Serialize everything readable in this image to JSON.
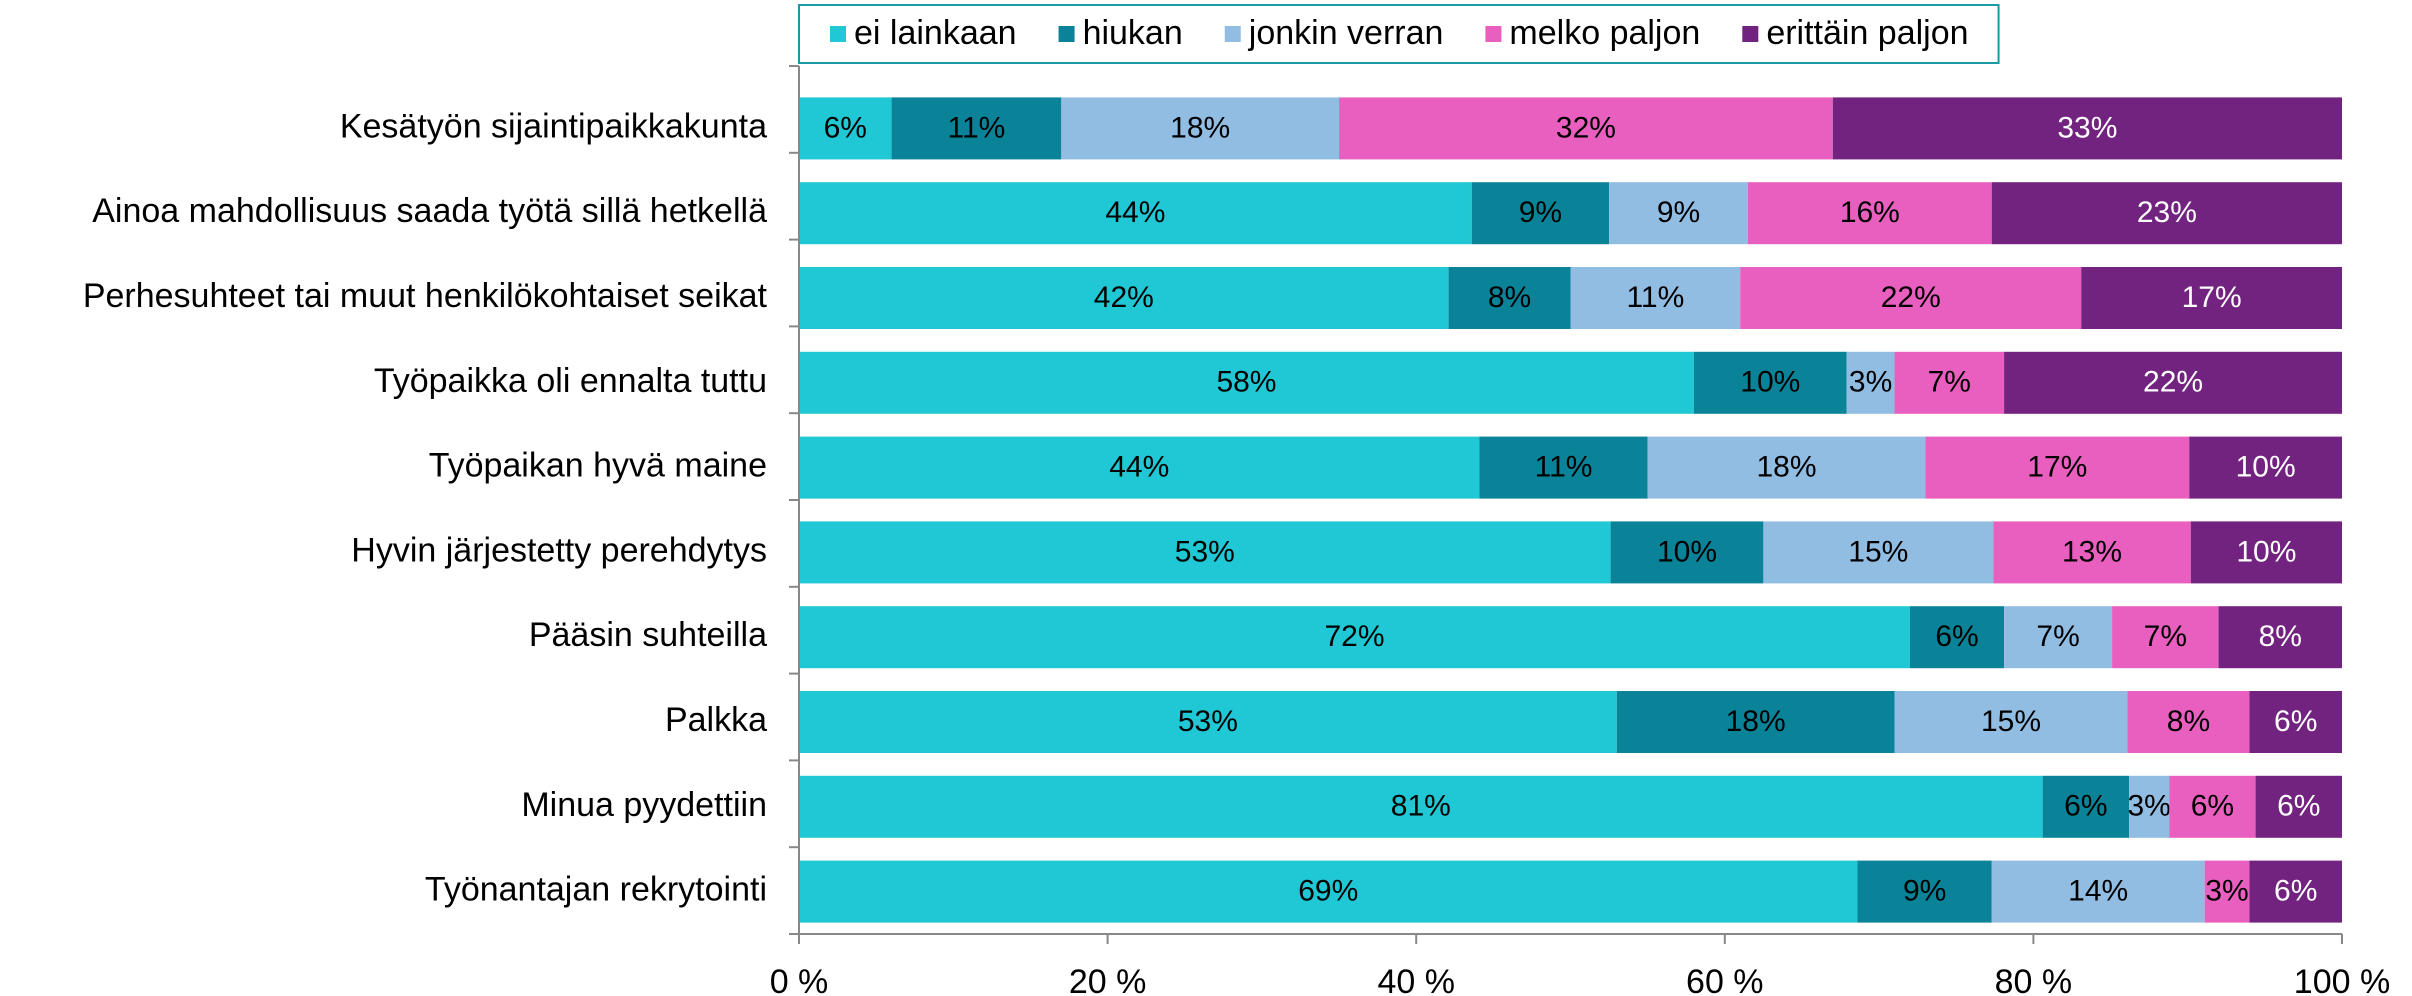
{
  "chart_data": {
    "type": "stacked_barh",
    "categories": [
      "Kesätyön sijaintipaikkakunta",
      "Ainoa mahdollisuus saada työtä sillä hetkellä",
      "Perhesuhteet tai muut henkilökohtaiset seikat",
      "Työpaikka oli ennalta tuttu",
      "Työpaikan hyvä maine",
      "Hyvin järjestetty perehdytys",
      "Pääsin suhteilla",
      "Palkka",
      "Minua pyydettiin",
      "Työnantajan rekrytointi"
    ],
    "series": [
      {
        "name": "ei lainkaan",
        "color": "#1fc8d4",
        "label_color": "#000000",
        "values": [
          6,
          43.6,
          42.1,
          58,
          44.1,
          52.6,
          72,
          53,
          80.6,
          68.6
        ],
        "value_labels": [
          "6%",
          "44%",
          "42%",
          "58%",
          "44%",
          "53%",
          "72%",
          "53%",
          "81%",
          "69%"
        ]
      },
      {
        "name": "hiukan",
        "color": "#0a8399",
        "label_color": "#000000",
        "values": [
          11,
          8.9,
          7.9,
          9.9,
          10.9,
          9.9,
          6.1,
          18,
          5.6,
          8.7
        ],
        "value_labels": [
          "11%",
          "9%",
          "8%",
          "10%",
          "11%",
          "10%",
          "6%",
          "18%",
          "6%",
          "9%"
        ]
      },
      {
        "name": "jonkin verran",
        "color": "#92bde3",
        "label_color": "#000000",
        "values": [
          18,
          9,
          11,
          3.1,
          18,
          14.9,
          7,
          15.1,
          2.6,
          13.8
        ],
        "value_labels": [
          "18%",
          "9%",
          "11%",
          "3%",
          "18%",
          "15%",
          "7%",
          "15%",
          "3%",
          "14%"
        ]
      },
      {
        "name": "melko paljon",
        "color": "#e95fc0",
        "label_color": "#000000",
        "values": [
          32,
          15.8,
          22.1,
          7.1,
          17.1,
          12.8,
          6.9,
          7.9,
          5.6,
          2.9
        ],
        "value_labels": [
          "32%",
          "16%",
          "22%",
          "7%",
          "17%",
          "13%",
          "7%",
          "8%",
          "6%",
          "3%"
        ]
      },
      {
        "name": "erittäin paljon",
        "color": "#72227f",
        "label_color": "#ffffff",
        "values": [
          33,
          22.7,
          16.9,
          21.9,
          9.9,
          9.8,
          8,
          6,
          5.6,
          6
        ],
        "value_labels": [
          "33%",
          "23%",
          "17%",
          "22%",
          "10%",
          "10%",
          "8%",
          "6%",
          "6%",
          "6%"
        ]
      }
    ],
    "xlim": [
      0,
      100
    ],
    "xticks": [
      {
        "value": 0,
        "label": "0 %"
      },
      {
        "value": 20,
        "label": "20 %"
      },
      {
        "value": 40,
        "label": "40 %"
      },
      {
        "value": 60,
        "label": "60 %"
      },
      {
        "value": 80,
        "label": "80 %"
      },
      {
        "value": 100,
        "label": "100 %"
      }
    ],
    "legend": "top",
    "grid": false
  }
}
